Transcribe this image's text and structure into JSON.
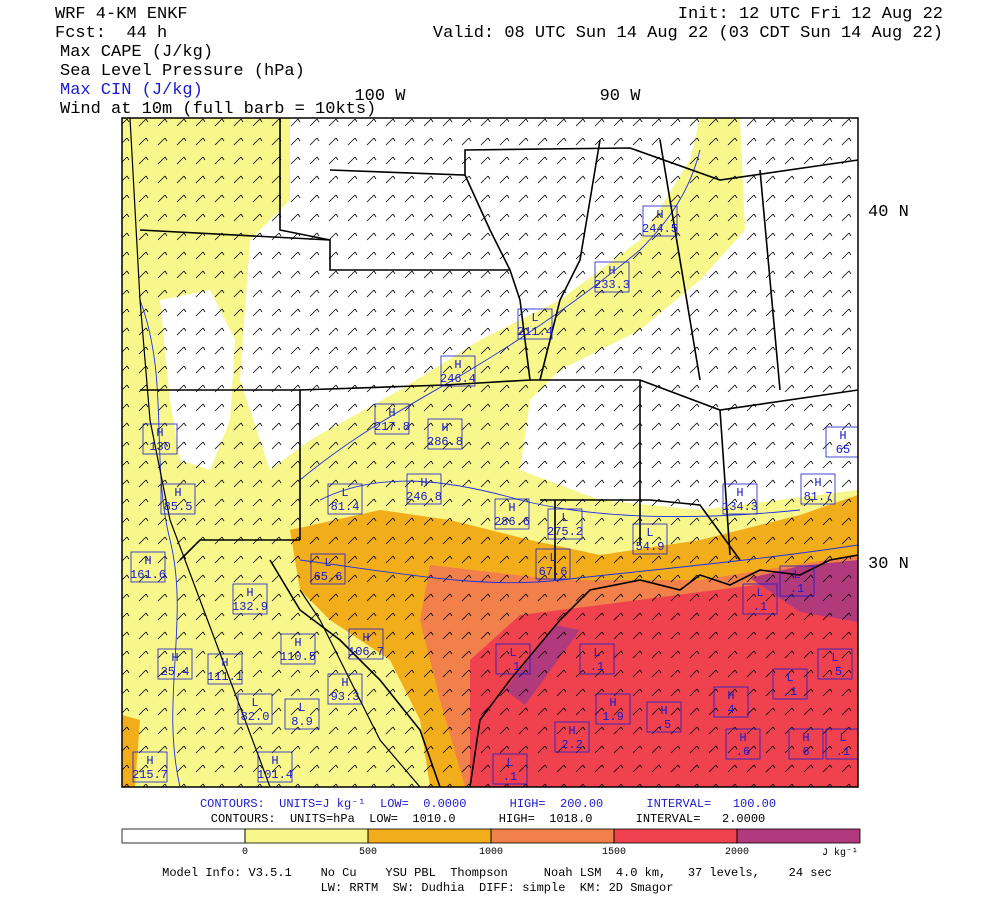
{
  "header": {
    "model": "WRF 4-KM ENKF",
    "forecast": "Fcst:  44 h",
    "init": "Init: 12 UTC Fri 12 Aug 22",
    "valid": "Valid: 08 UTC Sun 14 Aug 22 (03 CDT Sun 14 Aug 22)",
    "fields": [
      "Max CAPE (J/kg)",
      "Sea Level Pressure (hPa)",
      "Max CIN (J/kg)",
      "Wind at 10m (full barb = 10kts)"
    ]
  },
  "map": {
    "lon_labels": [
      "100 W",
      "90 W"
    ],
    "lat_labels": [
      "40 N",
      "30 N"
    ],
    "centers": [
      {
        "type": "H",
        "value": "244.5"
      },
      {
        "type": "H",
        "value": "233.3"
      },
      {
        "type": "L",
        "value": "211.4"
      },
      {
        "type": "H",
        "value": "246.4"
      },
      {
        "type": "H",
        "value": "217.8"
      },
      {
        "type": "H",
        "value": "286.8"
      },
      {
        "type": "H",
        "value": "130"
      },
      {
        "type": "H",
        "value": "65"
      },
      {
        "type": "L",
        "value": "81.4"
      },
      {
        "type": "H",
        "value": "246.8"
      },
      {
        "type": "H",
        "value": "286.6"
      },
      {
        "type": "L",
        "value": "275.2"
      },
      {
        "type": "L",
        "value": "54.9"
      },
      {
        "type": "H",
        "value": "134.3"
      },
      {
        "type": "H",
        "value": "81.7"
      },
      {
        "type": "H",
        "value": "85.5"
      },
      {
        "type": "H",
        "value": "161.6"
      },
      {
        "type": "L",
        "value": "65.6"
      },
      {
        "type": "L",
        "value": "67.6"
      },
      {
        "type": "H",
        "value": "132.9"
      },
      {
        "type": "H",
        "value": "110.5"
      },
      {
        "type": "H",
        "value": "106.7"
      },
      {
        "type": "H",
        "value": "25.4"
      },
      {
        "type": "H",
        "value": "111.1"
      },
      {
        "type": "H",
        "value": "93.3"
      },
      {
        "type": "L",
        "value": "82.0"
      },
      {
        "type": "L",
        "value": "8.9"
      },
      {
        "type": "L",
        "value": ".1"
      },
      {
        "type": "L",
        "value": ".1"
      },
      {
        "type": "L",
        "value": ".1"
      },
      {
        "type": "L",
        "value": ".1"
      },
      {
        "type": "L",
        "value": ".5"
      },
      {
        "type": "L",
        "value": ".1"
      },
      {
        "type": "H",
        "value": "1.9"
      },
      {
        "type": "H",
        "value": ".5"
      },
      {
        "type": "H",
        "value": "4"
      },
      {
        "type": "H",
        "value": "2.2"
      },
      {
        "type": "H",
        "value": ".6"
      },
      {
        "type": "H",
        "value": "6"
      },
      {
        "type": "L",
        "value": ".1"
      },
      {
        "type": "H",
        "value": "215.7"
      },
      {
        "type": "H",
        "value": "101.4"
      },
      {
        "type": "L",
        "value": ".1"
      }
    ]
  },
  "contours": [
    "CONTOURS:  UNITS=J kg⁻¹  LOW=  0.0000      HIGH=  200.00      INTERVAL=   100.00",
    "CONTOURS:  UNITS=hPa  LOW=  1010.0      HIGH=  1018.0      INTERVAL=   2.0000"
  ],
  "colorbar": {
    "ticks": [
      0,
      500,
      1000,
      1500,
      2000
    ],
    "unit": "J kg⁻¹",
    "colors": [
      "#ffffff",
      "#f7f78c",
      "#f2ae1a",
      "#f2804a",
      "#f0424e",
      "#b03a7c"
    ]
  },
  "footer": [
    "Model Info: V3.5.1    No Cu    YSU PBL  Thompson     Noah LSM  4.0 km,   37 levels,    24 sec",
    "LW: RRTM  SW: Dudhia  DIFF: simple  KM: 2D Smagor"
  ]
}
